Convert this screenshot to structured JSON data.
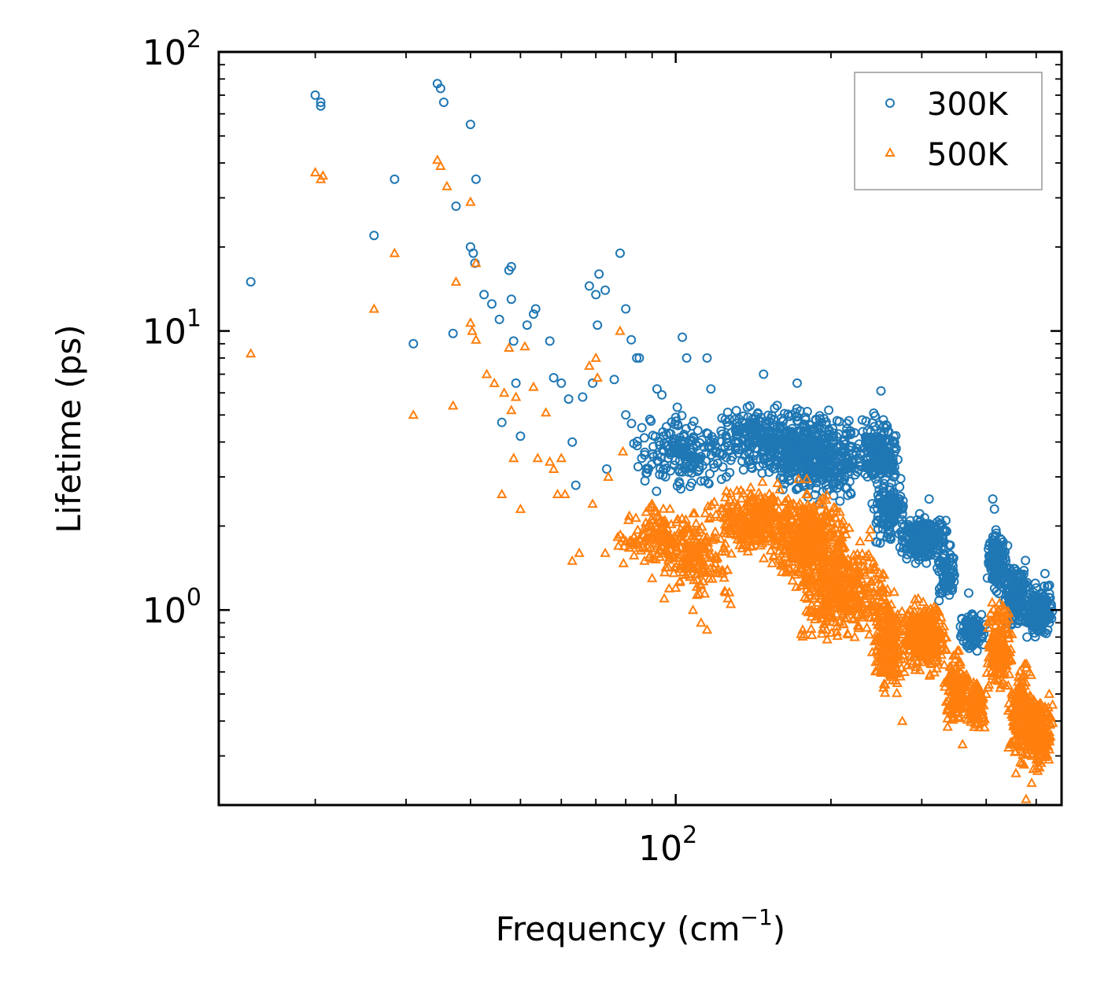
{
  "chart_data": {
    "type": "scatter",
    "xscale": "log",
    "yscale": "log",
    "xlim": [
      13,
      560
    ],
    "ylim": [
      0.2,
      100
    ],
    "xlabel": "Frequency (cm",
    "xlabel_sup": "−1",
    "xlabel_end": ")",
    "ylabel": "Lifetime (ps)",
    "x_major_ticks": [
      {
        "value": 100,
        "base": "10",
        "exp": "2"
      }
    ],
    "y_major_ticks": [
      {
        "value": 1,
        "base": "10",
        "exp": "0"
      },
      {
        "value": 10,
        "base": "10",
        "exp": "1"
      },
      {
        "value": 100,
        "base": "10",
        "exp": "2"
      }
    ],
    "legend_position": "top-right",
    "series": [
      {
        "name": "300K",
        "marker": "circle",
        "color": "#1f77b4",
        "points": [
          [
            15,
            15
          ],
          [
            20,
            70
          ],
          [
            20.5,
            66
          ],
          [
            20.5,
            64
          ],
          [
            26,
            22
          ],
          [
            28.5,
            35
          ],
          [
            31,
            9
          ],
          [
            34.5,
            77
          ],
          [
            35,
            74
          ],
          [
            35.5,
            66
          ],
          [
            37,
            9.8
          ],
          [
            37.5,
            28
          ],
          [
            40,
            55
          ],
          [
            40,
            20
          ],
          [
            40.5,
            19
          ],
          [
            40.8,
            17.5
          ],
          [
            41,
            35
          ],
          [
            42.5,
            13.5
          ],
          [
            44,
            12.5
          ],
          [
            45.5,
            11
          ],
          [
            46,
            4.7
          ],
          [
            47.5,
            16.5
          ],
          [
            48,
            17
          ],
          [
            48,
            13
          ],
          [
            48.5,
            9.2
          ],
          [
            49,
            6.5
          ],
          [
            50,
            4.2
          ],
          [
            51.5,
            10.5
          ],
          [
            53,
            11.5
          ],
          [
            53.5,
            12
          ],
          [
            57,
            9.2
          ],
          [
            58,
            6.8
          ],
          [
            60,
            6.5
          ],
          [
            62,
            5.7
          ],
          [
            63,
            4
          ],
          [
            64,
            2.8
          ],
          [
            66,
            5.8
          ],
          [
            68,
            14.5
          ],
          [
            69,
            6.5
          ],
          [
            70,
            13.5
          ],
          [
            70.5,
            10.5
          ],
          [
            71,
            16
          ],
          [
            73,
            14
          ],
          [
            73.5,
            3.2
          ],
          [
            76,
            6.7
          ],
          [
            78,
            19
          ],
          [
            80,
            12
          ],
          [
            80,
            5
          ],
          [
            82,
            9.3
          ],
          [
            84,
            8
          ],
          [
            85,
            8
          ],
          [
            86,
            4.5
          ],
          [
            88,
            3.1
          ],
          [
            92,
            6.2
          ],
          [
            94,
            5.9
          ],
          [
            97,
            4.3
          ],
          [
            100,
            4.9
          ],
          [
            103,
            9.5
          ],
          [
            105,
            8
          ],
          [
            108,
            3.3
          ],
          [
            115,
            8
          ],
          [
            117,
            6.2
          ],
          [
            120,
            3.7
          ],
          [
            148,
            7
          ],
          [
            172,
            6.5
          ],
          [
            198,
            5.2
          ],
          [
            230,
            4.8
          ],
          [
            250,
            6.1
          ],
          [
            258,
            3.2
          ],
          [
            275,
            2.2
          ],
          [
            310,
            2.5
          ],
          [
            340,
            1.7
          ],
          [
            370,
            1.15
          ],
          [
            378,
            0.95
          ],
          [
            412,
            2.5
          ],
          [
            415,
            2.3
          ],
          [
            440,
            1.7
          ],
          [
            480,
            0.8
          ],
          [
            500,
            1.2
          ],
          [
            520,
            1.35
          ],
          [
            530,
            0.9
          ]
        ],
        "clusters": [
          {
            "x": [
              80,
              130
            ],
            "y": [
              2.5,
              5.5
            ],
            "n": 180
          },
          {
            "x": [
              120,
              190
            ],
            "y": [
              2.8,
              5.8
            ],
            "n": 320
          },
          {
            "x": [
              150,
              240
            ],
            "y": [
              2.3,
              5.5
            ],
            "n": 420
          },
          {
            "x": [
              230,
              270
            ],
            "y": [
              2.5,
              5.5
            ],
            "n": 200
          },
          {
            "x": [
              240,
              280
            ],
            "y": [
              1.6,
              3.2
            ],
            "n": 140
          },
          {
            "x": [
              270,
              340
            ],
            "y": [
              1.4,
              2.3
            ],
            "n": 260
          },
          {
            "x": [
              320,
              350
            ],
            "y": [
              1.0,
              1.8
            ],
            "n": 80
          },
          {
            "x": [
              355,
              400
            ],
            "y": [
              0.7,
              1.0
            ],
            "n": 110
          },
          {
            "x": [
              400,
              440
            ],
            "y": [
              1.1,
              2.0
            ],
            "n": 160
          },
          {
            "x": [
              430,
              490
            ],
            "y": [
              0.8,
              1.6
            ],
            "n": 170
          },
          {
            "x": [
              480,
              540
            ],
            "y": [
              0.75,
              1.3
            ],
            "n": 160
          }
        ]
      },
      {
        "name": "500K",
        "marker": "triangle",
        "color": "#ff7f0e",
        "points": [
          [
            15,
            8.3
          ],
          [
            20,
            37
          ],
          [
            20.5,
            35
          ],
          [
            20.7,
            36
          ],
          [
            26,
            12
          ],
          [
            28.5,
            19
          ],
          [
            31,
            5
          ],
          [
            34.5,
            41
          ],
          [
            35,
            39
          ],
          [
            36,
            33
          ],
          [
            37,
            5.4
          ],
          [
            37.5,
            15
          ],
          [
            40,
            29
          ],
          [
            40,
            10.7
          ],
          [
            40.3,
            10
          ],
          [
            41,
            9.3
          ],
          [
            41,
            17.5
          ],
          [
            43,
            7
          ],
          [
            44.5,
            6.5
          ],
          [
            46,
            2.6
          ],
          [
            46.5,
            6
          ],
          [
            47.5,
            8.7
          ],
          [
            48,
            5.2
          ],
          [
            48.5,
            3.5
          ],
          [
            49,
            5.8
          ],
          [
            50,
            2.3
          ],
          [
            51,
            8.8
          ],
          [
            53,
            6.3
          ],
          [
            54,
            3.5
          ],
          [
            56,
            5.1
          ],
          [
            57,
            3.4
          ],
          [
            58,
            3.2
          ],
          [
            59,
            2.6
          ],
          [
            60,
            3.5
          ],
          [
            61,
            2.6
          ],
          [
            63,
            1.5
          ],
          [
            65,
            1.6
          ],
          [
            68,
            7.5
          ],
          [
            69,
            2.4
          ],
          [
            70,
            8
          ],
          [
            70.5,
            6.8
          ],
          [
            73,
            1.6
          ],
          [
            74,
            3
          ],
          [
            78,
            10
          ],
          [
            79,
            3.7
          ],
          [
            81,
            2.1
          ],
          [
            85,
            1.8
          ],
          [
            87,
            1.5
          ],
          [
            90,
            1.3
          ],
          [
            95,
            1.1
          ],
          [
            100,
            1.2
          ],
          [
            108,
            1.0
          ],
          [
            112,
            0.9
          ],
          [
            115,
            0.85
          ],
          [
            175,
            0.82
          ],
          [
            200,
            0.95
          ],
          [
            250,
            0.75
          ],
          [
            260,
            0.7
          ],
          [
            275,
            0.4
          ],
          [
            300,
            0.65
          ],
          [
            320,
            0.7
          ],
          [
            352,
            0.45
          ],
          [
            360,
            0.33
          ],
          [
            378,
            0.55
          ],
          [
            395,
            0.4
          ],
          [
            400,
            0.5
          ],
          [
            452,
            0.4
          ],
          [
            478,
            0.21
          ],
          [
            490,
            0.24
          ],
          [
            500,
            0.27
          ],
          [
            520,
            0.45
          ],
          [
            530,
            0.5
          ]
        ],
        "clusters": [
          {
            "x": [
              75,
              120
            ],
            "y": [
              1.3,
              2.6
            ],
            "n": 180
          },
          {
            "x": [
              95,
              130
            ],
            "y": [
              1.0,
              2.2
            ],
            "n": 120
          },
          {
            "x": [
              115,
              170
            ],
            "y": [
              1.5,
              3.0
            ],
            "n": 300
          },
          {
            "x": [
              150,
              220
            ],
            "y": [
              1.1,
              3.0
            ],
            "n": 420
          },
          {
            "x": [
              170,
              260
            ],
            "y": [
              0.7,
              2.0
            ],
            "n": 420
          },
          {
            "x": [
              240,
              280
            ],
            "y": [
              0.45,
              1.3
            ],
            "n": 200
          },
          {
            "x": [
              270,
              340
            ],
            "y": [
              0.55,
              1.2
            ],
            "n": 300
          },
          {
            "x": [
              330,
              370
            ],
            "y": [
              0.35,
              0.75
            ],
            "n": 150
          },
          {
            "x": [
              365,
              400
            ],
            "y": [
              0.35,
              0.6
            ],
            "n": 120
          },
          {
            "x": [
              400,
              450
            ],
            "y": [
              0.45,
              1.2
            ],
            "n": 200
          },
          {
            "x": [
              440,
              500
            ],
            "y": [
              0.25,
              0.7
            ],
            "n": 230
          },
          {
            "x": [
              480,
              540
            ],
            "y": [
              0.25,
              0.55
            ],
            "n": 180
          }
        ]
      }
    ]
  }
}
